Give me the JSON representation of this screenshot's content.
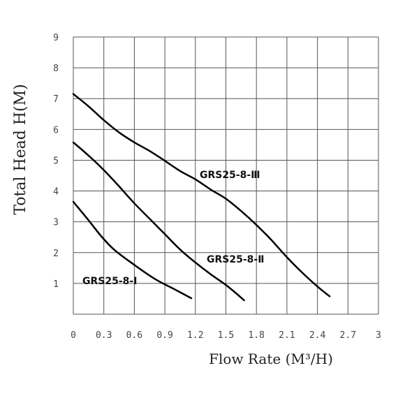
{
  "chart_data": {
    "type": "line",
    "xlabel": "Flow Rate (M³/H)",
    "ylabel": "Total Head H(M)",
    "xlim": [
      0,
      3
    ],
    "ylim": [
      0,
      9
    ],
    "x_ticks": [
      "0",
      "0.3",
      "0.6",
      "0.9",
      "1.2",
      "1.5",
      "1.8",
      "2.1",
      "2.4",
      "2.7",
      "3"
    ],
    "y_ticks": [
      "1",
      "2",
      "3",
      "4",
      "5",
      "6",
      "7",
      "8",
      "9"
    ],
    "grid": true,
    "line_color": "#000000",
    "series": [
      {
        "name": "GRS25-8-Ⅰ",
        "x": [
          0,
          0.15,
          0.27,
          0.4,
          0.6,
          0.8,
          1.0,
          1.16
        ],
        "y": [
          3.65,
          3.05,
          2.55,
          2.1,
          1.6,
          1.15,
          0.8,
          0.52
        ]
      },
      {
        "name": "GRS25-8-Ⅱ",
        "x": [
          0,
          0.15,
          0.3,
          0.45,
          0.6,
          0.75,
          0.9,
          1.05,
          1.2,
          1.35,
          1.5,
          1.6,
          1.68
        ],
        "y": [
          5.58,
          5.15,
          4.68,
          4.15,
          3.6,
          3.1,
          2.6,
          2.1,
          1.68,
          1.3,
          0.95,
          0.68,
          0.45
        ]
      },
      {
        "name": "GRS25-8-Ⅲ",
        "x": [
          0,
          0.15,
          0.3,
          0.45,
          0.6,
          0.75,
          0.9,
          1.05,
          1.2,
          1.35,
          1.5,
          1.65,
          1.8,
          1.95,
          2.1,
          2.25,
          2.4,
          2.52
        ],
        "y": [
          7.15,
          6.75,
          6.3,
          5.9,
          5.58,
          5.3,
          4.98,
          4.65,
          4.38,
          4.05,
          3.75,
          3.35,
          2.9,
          2.4,
          1.85,
          1.35,
          0.9,
          0.58
        ]
      }
    ]
  }
}
